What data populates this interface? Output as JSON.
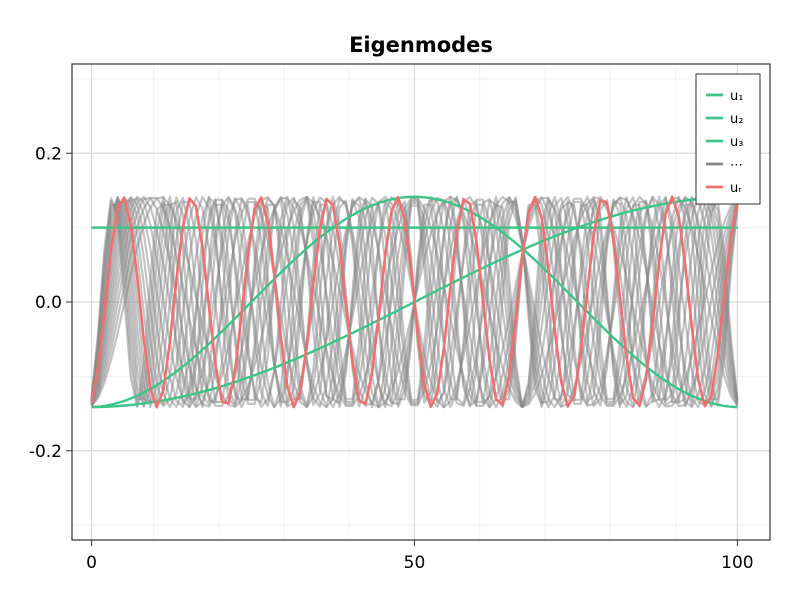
{
  "chart_data": {
    "type": "line",
    "title": "Eigenmodes",
    "xlabel": "",
    "ylabel": "",
    "xlim": [
      -2,
      105
    ],
    "ylim": [
      -0.32,
      0.32
    ],
    "x_ticks": [
      {
        "value": 1,
        "label": "0"
      },
      {
        "value": 50.5,
        "label": "50"
      },
      {
        "value": 100,
        "label": "100"
      }
    ],
    "y_ticks": [
      {
        "value": 0.2,
        "label": "0.2"
      },
      {
        "value": 0.0,
        "label": "0.0"
      },
      {
        "value": -0.2,
        "label": "-0.2"
      }
    ],
    "grid": true,
    "legend_position": "top-right",
    "n_points": 100,
    "highlight_modes": [
      {
        "label": "u₁",
        "mode_index": 0,
        "color": "#3cc587"
      },
      {
        "label": "u₂",
        "mode_index": 1,
        "color": "#3cc587"
      },
      {
        "label": "u₃",
        "mode_index": 2,
        "color": "#3cc587"
      }
    ],
    "background_modes": {
      "label": "⋯",
      "mode_indices": [
        9,
        10,
        11,
        12,
        13,
        14,
        15,
        16,
        17,
        18,
        19,
        20,
        21,
        22,
        23,
        24,
        25,
        26,
        27
      ],
      "color": "#888888"
    },
    "residual_mode": {
      "label": "uᵣ",
      "mode_index": 19,
      "color": "#f07070"
    }
  }
}
